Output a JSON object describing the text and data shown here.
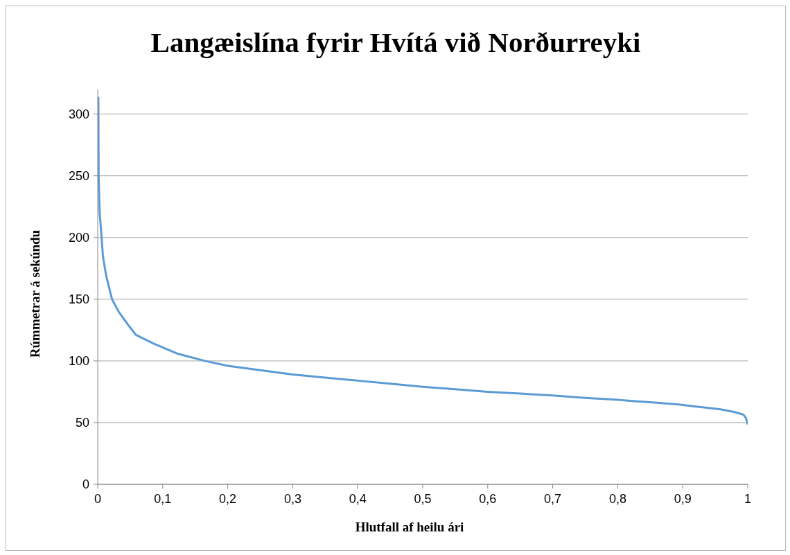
{
  "chart_data": {
    "type": "line",
    "title": "Langæislína fyrir Hvítá við Norðurreyki",
    "xlabel": "Hlutfall af heilu ári",
    "ylabel": "Rúmmetrar á sekúndu",
    "x": [
      0.001,
      0.0014,
      0.003,
      0.006,
      0.008,
      0.013,
      0.022,
      0.032,
      0.047,
      0.059,
      0.086,
      0.122,
      0.165,
      0.2,
      0.25,
      0.3,
      0.35,
      0.4,
      0.45,
      0.5,
      0.55,
      0.6,
      0.65,
      0.7,
      0.75,
      0.8,
      0.822,
      0.85,
      0.894,
      0.92,
      0.958,
      0.98,
      0.9936,
      0.997,
      1
    ],
    "series": [
      {
        "color": "#5b9bd5",
        "values": [
          314,
          250,
          220,
          200,
          185,
          169,
          150,
          140,
          129,
          121,
          114,
          106,
          100,
          96,
          92.5,
          89,
          86.5,
          84,
          81.5,
          79,
          77,
          75,
          73.5,
          72,
          70,
          68.5,
          67.5,
          66.5,
          64.7,
          63,
          60.8,
          58.5,
          56.4,
          54,
          48.5
        ]
      }
    ],
    "xlim": [
      0,
      1
    ],
    "xticks": [
      {
        "value": 0,
        "label": "0"
      },
      {
        "value": 0.1,
        "label": "0,1"
      },
      {
        "value": 0.2,
        "label": "0,2"
      },
      {
        "value": 0.3,
        "label": "0,3"
      },
      {
        "value": 0.4,
        "label": "0,4"
      },
      {
        "value": 0.5,
        "label": "0,5"
      },
      {
        "value": 0.6,
        "label": "0,6"
      },
      {
        "value": 0.7,
        "label": "0,7"
      },
      {
        "value": 0.8,
        "label": "0,8"
      },
      {
        "value": 0.9,
        "label": "0,9"
      },
      {
        "value": 1,
        "label": "1"
      }
    ],
    "ylim": [
      0,
      320
    ],
    "yticks": [
      0,
      50,
      100,
      150,
      200,
      250,
      300
    ],
    "grid": "y",
    "legend": false,
    "marker": "none",
    "line_style": "solid"
  }
}
